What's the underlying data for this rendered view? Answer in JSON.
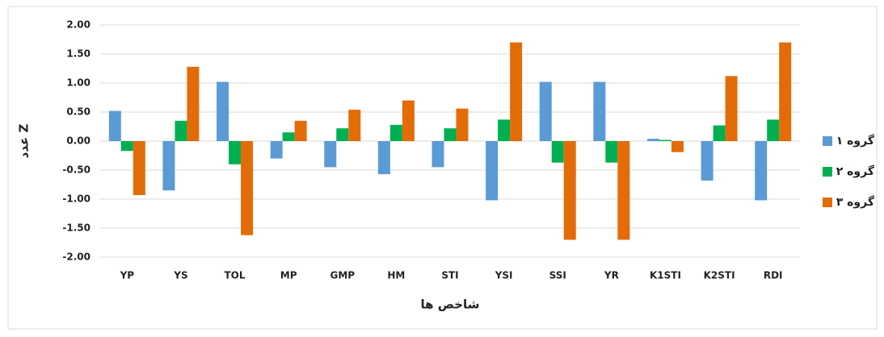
{
  "chart_data": {
    "type": "bar",
    "y_label": "عدد Z",
    "x_label": "شاخص ها",
    "categories": [
      "YP",
      "YS",
      "TOL",
      "MP",
      "GMP",
      "HM",
      "STI",
      "YSI",
      "SSI",
      "YR",
      "K1STI",
      "K2STI",
      "RDI"
    ],
    "series": [
      {
        "name": "گروه ۱",
        "color": "#5b9bd5",
        "values": [
          0.52,
          -0.85,
          1.02,
          -0.3,
          -0.45,
          -0.57,
          -0.45,
          -1.02,
          1.02,
          1.02,
          0.04,
          -0.68,
          -1.02
        ]
      },
      {
        "name": "گروه ۲",
        "color": "#00b050",
        "values": [
          -0.17,
          0.35,
          -0.4,
          0.15,
          0.22,
          0.28,
          0.22,
          0.37,
          -0.37,
          -0.37,
          0.02,
          0.27,
          0.37
        ]
      },
      {
        "name": "گروه ۳",
        "color": "#e36c09",
        "values": [
          -0.93,
          1.28,
          -1.62,
          0.35,
          0.54,
          0.7,
          0.56,
          1.7,
          -1.7,
          -1.7,
          -0.19,
          1.12,
          1.7
        ]
      }
    ],
    "ylim": [
      -2,
      2
    ],
    "yticks": [
      {
        "value": -2,
        "label": "-2.00"
      },
      {
        "value": -1.5,
        "label": "-1.50"
      },
      {
        "value": -1,
        "label": "-1.00"
      },
      {
        "value": -0.5,
        "label": "-0.50"
      },
      {
        "value": 0,
        "label": "0.00"
      },
      {
        "value": 0.5,
        "label": "0.50"
      },
      {
        "value": 1,
        "label": "1.00"
      },
      {
        "value": 1.5,
        "label": "1.50"
      },
      {
        "value": 2,
        "label": "2.00"
      }
    ],
    "grid": true,
    "legend": "right"
  }
}
